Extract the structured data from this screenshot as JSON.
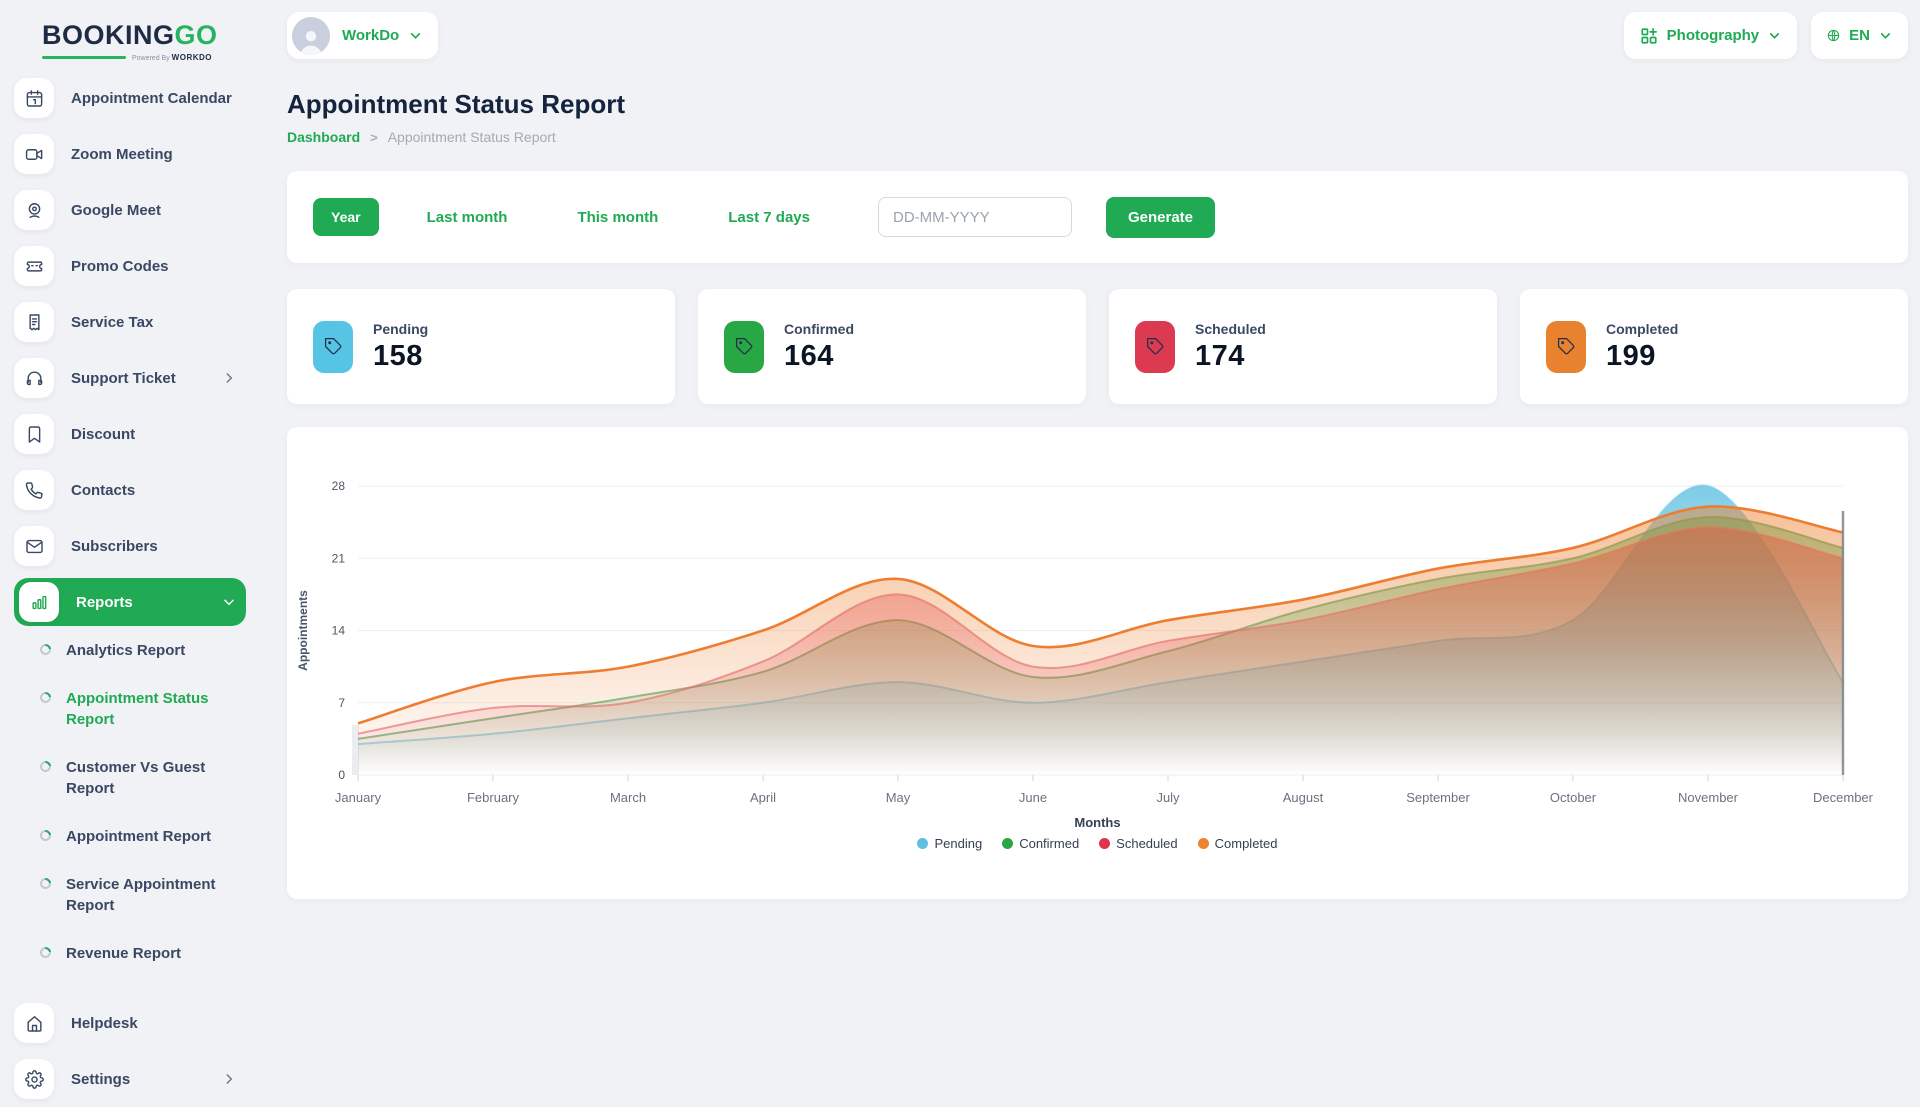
{
  "brand": {
    "name_primary": "BOOKING",
    "name_accent": "GO",
    "powered_prefix": "Powered By",
    "powered_brand": "WORKDO",
    "accent_color": "#1faa53"
  },
  "topbar": {
    "workspace": "WorkDo",
    "category": "Photography",
    "language": "EN"
  },
  "sidebar": {
    "items": [
      {
        "label": "Appointment Calendar",
        "icon": "calendar"
      },
      {
        "label": "Zoom Meeting",
        "icon": "video"
      },
      {
        "label": "Google Meet",
        "icon": "webcam"
      },
      {
        "label": "Promo Codes",
        "icon": "ticket"
      },
      {
        "label": "Service Tax",
        "icon": "receipt"
      },
      {
        "label": "Support Ticket",
        "icon": "headphones",
        "chevron": "right"
      },
      {
        "label": "Discount",
        "icon": "bookmark"
      },
      {
        "label": "Contacts",
        "icon": "phone"
      },
      {
        "label": "Subscribers",
        "icon": "mail"
      },
      {
        "label": "Reports",
        "icon": "bar-chart",
        "active": true,
        "chevron": "down",
        "children": [
          {
            "label": "Analytics Report"
          },
          {
            "label": "Appointment Status Report",
            "active": true
          },
          {
            "label": "Customer Vs Guest Report"
          },
          {
            "label": "Appointment Report"
          },
          {
            "label": "Service Appointment Report"
          },
          {
            "label": "Revenue Report"
          }
        ]
      },
      {
        "label": "Helpdesk",
        "icon": "home"
      },
      {
        "label": "Settings",
        "icon": "gear",
        "chevron": "right"
      }
    ]
  },
  "page": {
    "title": "Appointment Status Report",
    "breadcrumb_home": "Dashboard",
    "breadcrumb_separator": ">",
    "breadcrumb_current": "Appointment Status Report"
  },
  "filters": {
    "year_label": "Year",
    "last_month_label": "Last month",
    "this_month_label": "This month",
    "last7_label": "Last 7 days",
    "date_placeholder": "DD-MM-YYYY",
    "generate_label": "Generate"
  },
  "stats": [
    {
      "label": "Pending",
      "value": "158",
      "color": "#56c5e5"
    },
    {
      "label": "Confirmed",
      "value": "164",
      "color": "#28a745"
    },
    {
      "label": "Scheduled",
      "value": "174",
      "color": "#dc3a50"
    },
    {
      "label": "Completed",
      "value": "199",
      "color": "#e8822f"
    }
  ],
  "chart_data": {
    "type": "area",
    "x": [
      "January",
      "February",
      "March",
      "April",
      "May",
      "June",
      "July",
      "August",
      "September",
      "October",
      "November",
      "December"
    ],
    "xlabel": "Months",
    "ylabel": "Appointments",
    "ylim": [
      0,
      28
    ],
    "yticks": [
      0,
      7,
      14,
      21,
      28
    ],
    "grid": true,
    "legend_position": "bottom",
    "series": [
      {
        "name": "Pending",
        "color": "#5ec0e0",
        "stroke": "#7bcbe8",
        "values": [
          3,
          4,
          5.5,
          7,
          9,
          7,
          9,
          11,
          13,
          15,
          28,
          9
        ]
      },
      {
        "name": "Confirmed",
        "color": "#27a844",
        "stroke": "#4fa35a",
        "values": [
          3.5,
          5.5,
          7.5,
          10,
          15,
          9.5,
          12,
          16,
          19,
          21,
          25,
          22
        ]
      },
      {
        "name": "Scheduled",
        "color": "#e0334d",
        "stroke": "#e36b74",
        "values": [
          4,
          6.5,
          7,
          11,
          17.5,
          10.5,
          13,
          15,
          18,
          20.5,
          24,
          21
        ]
      },
      {
        "name": "Completed",
        "color": "#ed8233",
        "stroke": "#ed7d31",
        "values": [
          5,
          9,
          10.5,
          14,
          19,
          12.5,
          15,
          17,
          20,
          22,
          26,
          23.5
        ]
      }
    ]
  }
}
